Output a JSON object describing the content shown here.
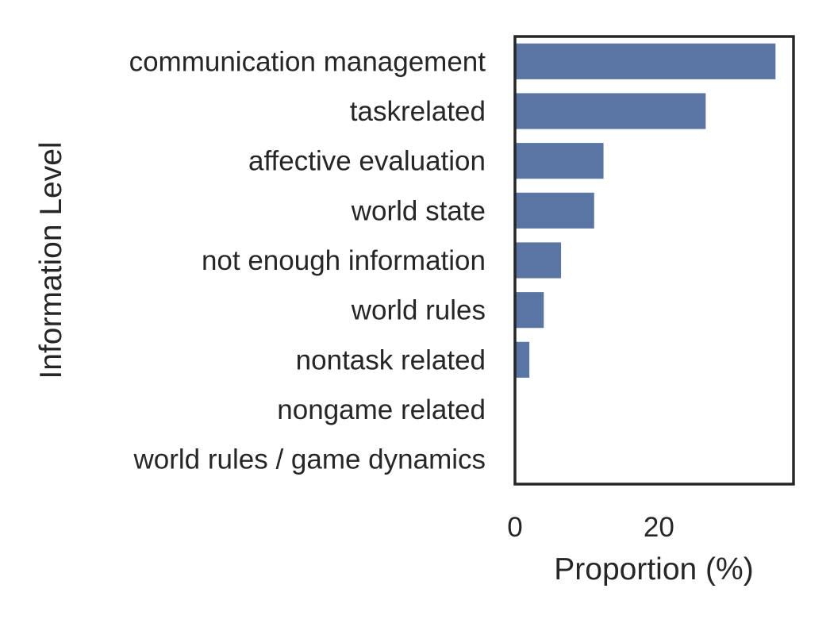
{
  "chart_data": {
    "type": "bar",
    "orientation": "horizontal",
    "categories": [
      "communication management",
      "taskrelated",
      "affective evaluation",
      "world state",
      "not enough information",
      "world rules",
      "nontask related",
      "nongame related",
      "world rules / game dynamics"
    ],
    "values": [
      36.2,
      26.5,
      12.3,
      11.0,
      6.4,
      4.0,
      2.0,
      0,
      0
    ],
    "title": "",
    "xlabel": "Proportion (%)",
    "ylabel": "Information Level",
    "xlim": [
      0,
      38.7
    ],
    "xticks": [
      0,
      20
    ],
    "grid": false,
    "legend": "none",
    "bar_color": "#5975a4",
    "frame_color": "#262626"
  }
}
